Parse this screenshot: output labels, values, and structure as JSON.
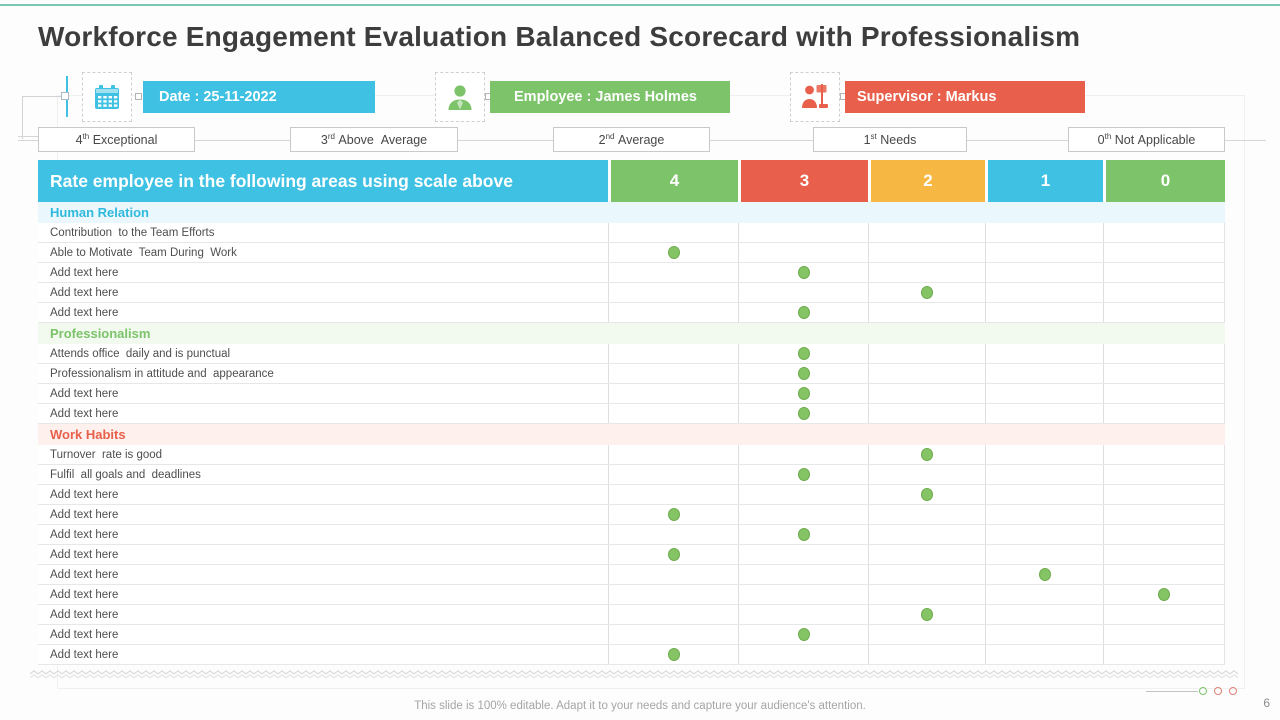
{
  "slide": {
    "title": "Workforce Engagement Evaluation Balanced Scorecard with Professionalism",
    "footer": "This slide is 100% editable. Adapt it to your needs and capture your audience's attention.",
    "page_number": "6"
  },
  "badges": [
    {
      "icon": "calendar-icon",
      "label": "Date : 25-11-2022",
      "color": "#3ec1e2"
    },
    {
      "icon": "person-icon",
      "label": "Employee : James Holmes",
      "color": "#7cc36a"
    },
    {
      "icon": "presenter-icon",
      "label": "Supervisor : Markus",
      "color": "#e8604c"
    }
  ],
  "scale_legend": [
    {
      "rank": "4",
      "suffix": "th",
      "label": "Exceptional"
    },
    {
      "rank": "3",
      "suffix": "rd",
      "label": "Above  Average"
    },
    {
      "rank": "2",
      "suffix": "nd",
      "label": "Average"
    },
    {
      "rank": "1",
      "suffix": "st",
      "label": "Needs"
    },
    {
      "rank": "0",
      "suffix": "th",
      "label": "Not Applicable"
    }
  ],
  "table": {
    "header_label": "Rate employee in the following areas using scale above",
    "columns": [
      {
        "label": "4",
        "color": "#7cc36a"
      },
      {
        "label": "3",
        "color": "#e8604c"
      },
      {
        "label": "2",
        "color": "#f6b843"
      },
      {
        "label": "1",
        "color": "#3ec1e2"
      },
      {
        "label": "0",
        "color": "#7cc36a"
      }
    ],
    "dot_color": "#85c464",
    "sections": [
      {
        "name": "Human Relation",
        "color": "#2fb9dc",
        "bg": "#eaf7fc",
        "rows": [
          {
            "label": "Contribution  to the Team Efforts",
            "rating": null
          },
          {
            "label": "Able to Motivate  Team During  Work",
            "rating": "4"
          },
          {
            "label": "Add text here",
            "rating": "3"
          },
          {
            "label": "Add text here",
            "rating": "2"
          },
          {
            "label": "Add text here",
            "rating": "3"
          }
        ]
      },
      {
        "name": "Professionalism",
        "color": "#7cc36a",
        "bg": "#f2f9ee",
        "rows": [
          {
            "label": "Attends office  daily and is punctual",
            "rating": "3"
          },
          {
            "label": "Professionalism in attitude and  appearance",
            "rating": "3"
          },
          {
            "label": "Add text here",
            "rating": "3"
          },
          {
            "label": "Add text here",
            "rating": "3"
          }
        ]
      },
      {
        "name": "Work Habits",
        "color": "#e8604c",
        "bg": "#fdf0ed",
        "rows": [
          {
            "label": "Turnover  rate is good",
            "rating": "2"
          },
          {
            "label": "Fulfil  all goals and  deadlines",
            "rating": "3"
          },
          {
            "label": "Add text here",
            "rating": "2"
          },
          {
            "label": "Add text here",
            "rating": "4"
          },
          {
            "label": "Add text here",
            "rating": "3"
          },
          {
            "label": "Add text here",
            "rating": "4"
          },
          {
            "label": "Add text here",
            "rating": "1"
          },
          {
            "label": "Add text here",
            "rating": "0"
          },
          {
            "label": "Add text here",
            "rating": "2"
          },
          {
            "label": "Add text here",
            "rating": "3"
          },
          {
            "label": "Add text here",
            "rating": "4"
          }
        ]
      }
    ]
  },
  "decor": {
    "accent_line_color": "#79c8b4",
    "pager_dots_colors": [
      "#7cc36a",
      "#e08073",
      "#e08073"
    ]
  }
}
